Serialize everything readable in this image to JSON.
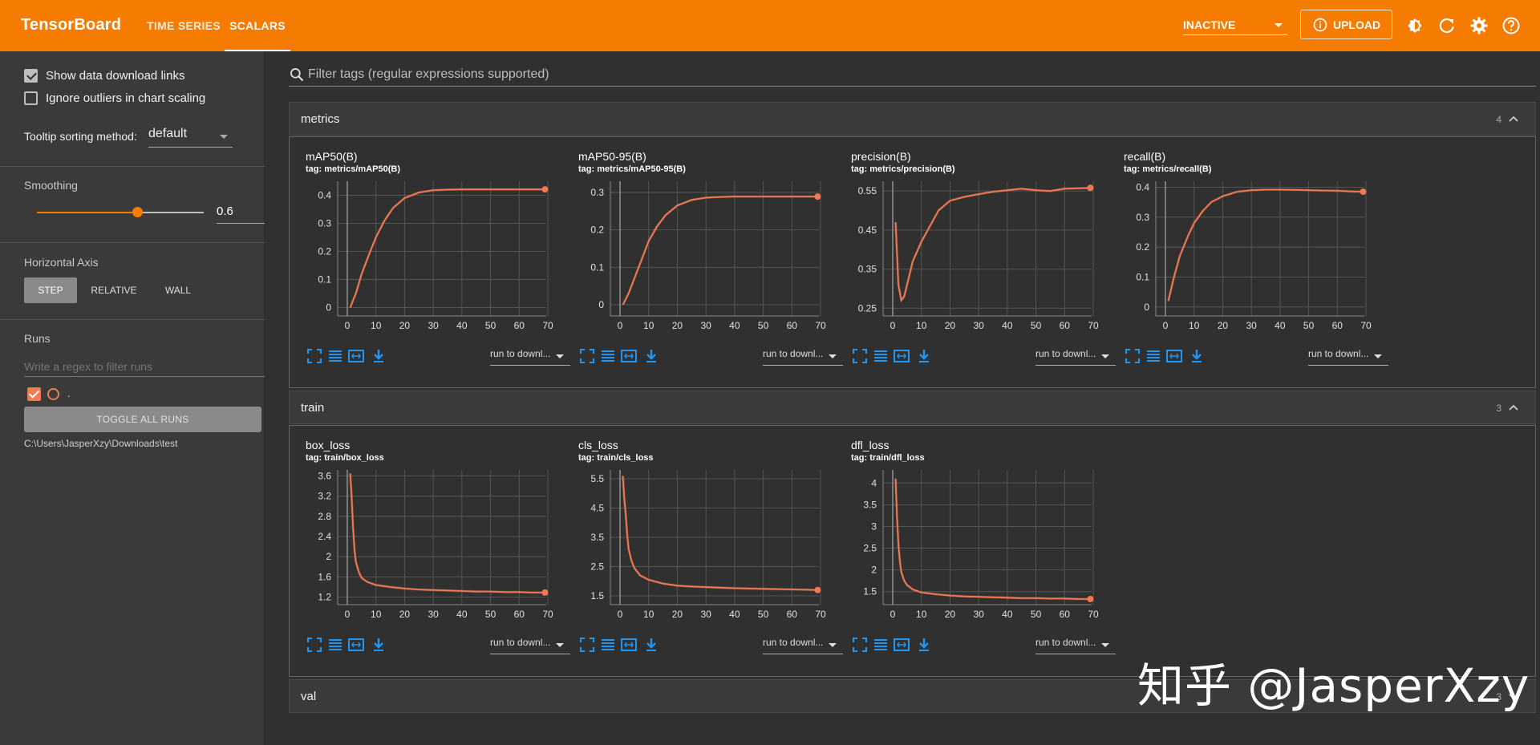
{
  "header": {
    "brand": "TensorBoard",
    "tabs": [
      "TIME SERIES",
      "SCALARS"
    ],
    "active_tab": "SCALARS",
    "status_select": "INACTIVE",
    "upload_label": "UPLOAD",
    "icons": [
      "upload-info-icon",
      "theme-icon",
      "reload-icon",
      "settings-icon",
      "help-icon"
    ],
    "bg_color": "#f57c00"
  },
  "sidebar": {
    "show_download_links": {
      "label": "Show data download links",
      "checked": true
    },
    "ignore_outliers": {
      "label": "Ignore outliers in chart scaling",
      "checked": false
    },
    "tooltip_label": "Tooltip sorting method:",
    "tooltip_value": "default",
    "smoothing_label": "Smoothing",
    "smoothing_value": "0.6",
    "horizontal_axis_label": "Horizontal Axis",
    "axis_options": [
      "STEP",
      "RELATIVE",
      "WALL"
    ],
    "axis_selected": "STEP",
    "runs_label": "Runs",
    "runs_filter_placeholder": "Write a regex to filter runs",
    "run_name": ".",
    "toggle_all_label": "TOGGLE ALL RUNS",
    "run_path": "C:\\Users\\JasperXzy\\Downloads\\test"
  },
  "main": {
    "filter_placeholder": "Filter tags (regular expressions supported)",
    "sections": [
      {
        "title": "metrics",
        "count": "4",
        "expanded": true
      },
      {
        "title": "train",
        "count": "3",
        "expanded": true
      },
      {
        "title": "val",
        "count": "3",
        "expanded": false
      }
    ],
    "run_download_label": "run to downl..."
  },
  "watermark": "知乎 @JasperXzy",
  "accent_color": "#f07a53",
  "chart_data": [
    {
      "type": "line",
      "title": "mAP50(B)",
      "tag": "tag: metrics/mAP50(B)",
      "xlim": [
        0,
        70
      ],
      "ylim": [
        -0.03,
        0.45
      ],
      "xticks": [
        "0",
        "10",
        "20",
        "30",
        "40",
        "50",
        "60",
        "70"
      ],
      "yticks": [
        "0",
        "0.1",
        "0.2",
        "0.3",
        "0.4"
      ],
      "ytick_values": [
        0,
        0.1,
        0.2,
        0.3,
        0.4
      ],
      "x": [
        1,
        3,
        5,
        8,
        10,
        13,
        16,
        20,
        25,
        30,
        35,
        40,
        45,
        50,
        55,
        60,
        65,
        69
      ],
      "y": [
        0.0,
        0.05,
        0.12,
        0.2,
        0.25,
        0.31,
        0.355,
        0.39,
        0.41,
        0.418,
        0.42,
        0.421,
        0.421,
        0.421,
        0.421,
        0.421,
        0.421,
        0.421
      ]
    },
    {
      "type": "line",
      "title": "mAP50-95(B)",
      "tag": "tag: metrics/mAP50-95(B)",
      "xlim": [
        0,
        70
      ],
      "ylim": [
        -0.03,
        0.33
      ],
      "xticks": [
        "0",
        "10",
        "20",
        "30",
        "40",
        "50",
        "60",
        "70"
      ],
      "yticks": [
        "0",
        "0.1",
        "0.2",
        "0.3"
      ],
      "ytick_values": [
        0,
        0.1,
        0.2,
        0.3
      ],
      "x": [
        1,
        3,
        5,
        8,
        10,
        13,
        16,
        20,
        25,
        30,
        35,
        40,
        45,
        50,
        55,
        60,
        65,
        69
      ],
      "y": [
        0.0,
        0.03,
        0.07,
        0.13,
        0.17,
        0.21,
        0.24,
        0.265,
        0.28,
        0.286,
        0.288,
        0.289,
        0.289,
        0.289,
        0.289,
        0.289,
        0.289,
        0.289
      ]
    },
    {
      "type": "line",
      "title": "precision(B)",
      "tag": "tag: metrics/precision(B)",
      "xlim": [
        0,
        70
      ],
      "ylim": [
        0.23,
        0.575
      ],
      "xticks": [
        "0",
        "10",
        "20",
        "30",
        "40",
        "50",
        "60",
        "70"
      ],
      "yticks": [
        "0.25",
        "0.35",
        "0.45",
        "0.55"
      ],
      "ytick_values": [
        0.25,
        0.35,
        0.45,
        0.55
      ],
      "x": [
        1,
        2,
        3,
        4,
        5,
        7,
        10,
        13,
        16,
        20,
        25,
        30,
        35,
        40,
        45,
        50,
        55,
        60,
        65,
        69
      ],
      "y": [
        0.47,
        0.31,
        0.27,
        0.28,
        0.31,
        0.37,
        0.42,
        0.46,
        0.5,
        0.525,
        0.535,
        0.542,
        0.548,
        0.552,
        0.556,
        0.552,
        0.55,
        0.556,
        0.557,
        0.558
      ]
    },
    {
      "type": "line",
      "title": "recall(B)",
      "tag": "tag: metrics/recall(B)",
      "xlim": [
        0,
        70
      ],
      "ylim": [
        -0.03,
        0.42
      ],
      "xticks": [
        "0",
        "10",
        "20",
        "30",
        "40",
        "50",
        "60",
        "70"
      ],
      "yticks": [
        "0",
        "0.1",
        "0.2",
        "0.3",
        "0.4"
      ],
      "ytick_values": [
        0,
        0.1,
        0.2,
        0.3,
        0.4
      ],
      "x": [
        1,
        3,
        5,
        8,
        10,
        13,
        16,
        20,
        25,
        30,
        35,
        40,
        45,
        50,
        55,
        60,
        65,
        69
      ],
      "y": [
        0.02,
        0.1,
        0.17,
        0.24,
        0.28,
        0.32,
        0.35,
        0.37,
        0.385,
        0.39,
        0.392,
        0.392,
        0.391,
        0.39,
        0.389,
        0.388,
        0.386,
        0.385
      ]
    },
    {
      "type": "line",
      "title": "box_loss",
      "tag": "tag: train/box_loss",
      "xlim": [
        0,
        70
      ],
      "ylim": [
        1.05,
        3.72
      ],
      "xticks": [
        "0",
        "10",
        "20",
        "30",
        "40",
        "50",
        "60",
        "70"
      ],
      "yticks": [
        "1.2",
        "1.6",
        "2",
        "2.4",
        "2.8",
        "3.2",
        "3.6"
      ],
      "ytick_values": [
        1.2,
        1.6,
        2,
        2.4,
        2.8,
        3.2,
        3.6
      ],
      "x": [
        1,
        1.5,
        2,
        2.5,
        3,
        4,
        5,
        7,
        10,
        15,
        20,
        25,
        30,
        35,
        40,
        45,
        50,
        55,
        60,
        65,
        69
      ],
      "y": [
        3.65,
        3.2,
        2.6,
        2.15,
        1.9,
        1.7,
        1.58,
        1.5,
        1.44,
        1.4,
        1.37,
        1.35,
        1.34,
        1.33,
        1.32,
        1.31,
        1.31,
        1.3,
        1.3,
        1.29,
        1.29
      ]
    },
    {
      "type": "line",
      "title": "cls_loss",
      "tag": "tag: train/cls_loss",
      "xlim": [
        0,
        70
      ],
      "ylim": [
        1.2,
        5.8
      ],
      "xticks": [
        "0",
        "10",
        "20",
        "30",
        "40",
        "50",
        "60",
        "70"
      ],
      "yticks": [
        "1.5",
        "2.5",
        "3.5",
        "4.5",
        "5.5"
      ],
      "ytick_values": [
        1.5,
        2.5,
        3.5,
        4.5,
        5.5
      ],
      "x": [
        1,
        1.5,
        2,
        2.5,
        3,
        4,
        5,
        7,
        10,
        15,
        20,
        25,
        30,
        35,
        40,
        45,
        50,
        55,
        60,
        65,
        69
      ],
      "y": [
        5.6,
        4.8,
        4.3,
        3.6,
        3.1,
        2.7,
        2.45,
        2.2,
        2.05,
        1.92,
        1.85,
        1.82,
        1.8,
        1.78,
        1.76,
        1.75,
        1.74,
        1.73,
        1.72,
        1.71,
        1.7
      ]
    },
    {
      "type": "line",
      "title": "dfl_loss",
      "tag": "tag: train/dfl_loss",
      "xlim": [
        0,
        70
      ],
      "ylim": [
        1.2,
        4.3
      ],
      "xticks": [
        "0",
        "10",
        "20",
        "30",
        "40",
        "50",
        "60",
        "70"
      ],
      "yticks": [
        "1.5",
        "2",
        "2.5",
        "3",
        "3.5",
        "4"
      ],
      "ytick_values": [
        1.5,
        2,
        2.5,
        3,
        3.5,
        4
      ],
      "x": [
        1,
        1.5,
        2,
        2.5,
        3,
        4,
        5,
        7,
        10,
        15,
        20,
        25,
        30,
        35,
        40,
        45,
        50,
        55,
        60,
        65,
        69
      ],
      "y": [
        4.1,
        3.2,
        2.6,
        2.2,
        1.95,
        1.75,
        1.65,
        1.55,
        1.48,
        1.44,
        1.41,
        1.39,
        1.38,
        1.37,
        1.36,
        1.35,
        1.35,
        1.34,
        1.34,
        1.33,
        1.33
      ]
    }
  ]
}
